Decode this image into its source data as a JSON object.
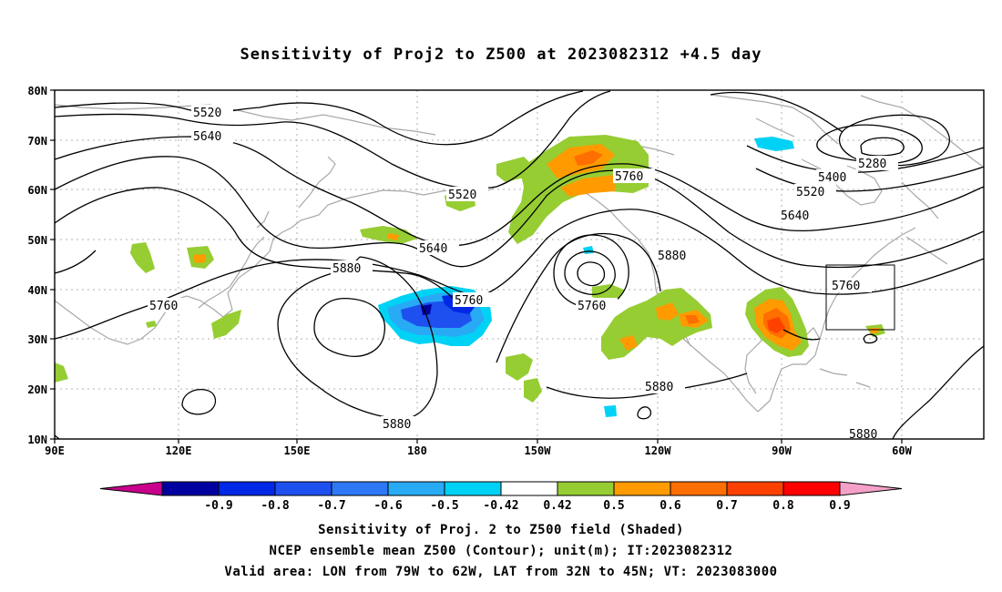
{
  "title": "Sensitivity of Proj2 to Z500 at 2023082312 +4.5 day",
  "latitude_labels": [
    "80N",
    "70N",
    "60N",
    "50N",
    "40N",
    "30N",
    "20N",
    "10N"
  ],
  "longitude_labels": [
    "90E",
    "120E",
    "150E",
    "180",
    "150W",
    "120W",
    "90W",
    "60W"
  ],
  "contour_labels": {
    "c5520_a": "5520",
    "c5640_a": "5640",
    "c5520_b": "5520",
    "c5640_b": "5640",
    "c5760_a": "5760",
    "c5880_a": "5880",
    "c5760_b": "5760",
    "c5760_c": "5760",
    "c5760_d": "5760",
    "c5880_b": "5880",
    "c5880_c": "5880",
    "c5880_d": "5880",
    "c5400": "5400",
    "c5520_c": "5520",
    "c5640_c": "5640",
    "c5280": "5280",
    "c5760_e": "5760",
    "c5880_e": "5880"
  },
  "colorbar": {
    "ticks": [
      "-0.9",
      "-0.8",
      "-0.7",
      "-0.6",
      "-0.5",
      "-0.42",
      "0.42",
      "0.5",
      "0.6",
      "0.7",
      "0.8",
      "0.9"
    ],
    "colors": [
      "#c8008c",
      "#0000a0",
      "#0028e6",
      "#1e50f0",
      "#2d78f5",
      "#28aaf5",
      "#00d2f5",
      "#ffffff",
      "#96cd32",
      "#ff9b00",
      "#ff6e00",
      "#ff4100",
      "#ff0000",
      "#f5a0c8"
    ]
  },
  "captions": {
    "line1": "Sensitivity of Proj. 2 to Z500 field (Shaded)",
    "line2": "NCEP ensemble mean Z500 (Contour); unit(m); IT:2023082312",
    "line3": "Valid area: LON from 79W to 62W, LAT from 32N to 45N; VT: 2023083000"
  },
  "valid_area": {
    "lon_min": -79,
    "lon_max": -62,
    "lat_min": 32,
    "lat_max": 45
  }
}
